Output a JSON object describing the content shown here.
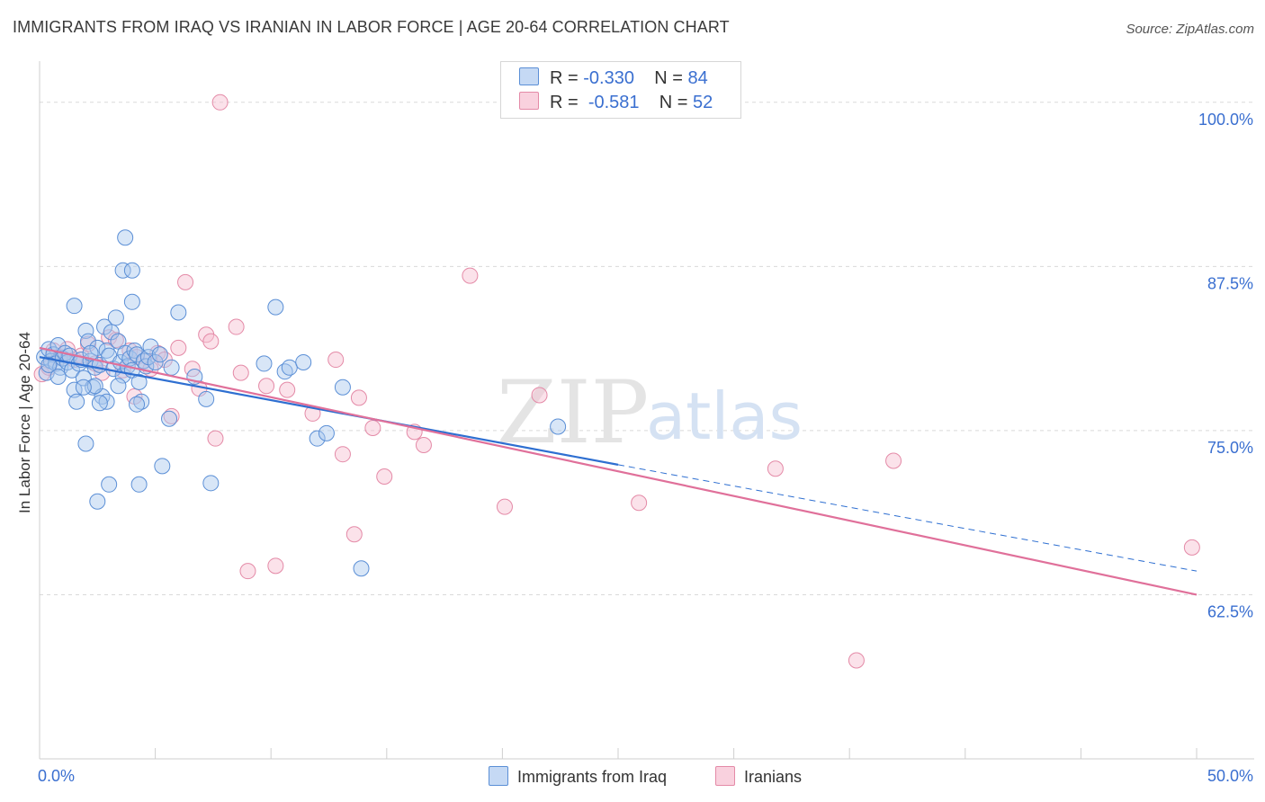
{
  "title": "IMMIGRANTS FROM IRAQ VS IRANIAN IN LABOR FORCE | AGE 20-64 CORRELATION CHART",
  "source": "Source: ZipAtlas.com",
  "watermark": {
    "zip": "ZIP",
    "atlas": "atlas"
  },
  "legend": {
    "series1": {
      "r_label": "R =",
      "r_value": "-0.330",
      "n_label": "N =",
      "n_value": "84"
    },
    "series2": {
      "r_label": "R =",
      "r_value": "-0.581",
      "n_label": "N =",
      "n_value": "52"
    }
  },
  "bottom_legend": {
    "series1": "Immigrants from Iraq",
    "series2": "Iranians"
  },
  "colors": {
    "blue_fill": "#a9c7ee",
    "blue_stroke": "#5b8fd6",
    "blue_line": "#2e6fd1",
    "pink_fill": "#f6bfd0",
    "pink_stroke": "#e48aa7",
    "pink_line": "#e0709a",
    "tick_label": "#3a6fd0",
    "grid": "#d9d9d9"
  },
  "chart_data": {
    "type": "scatter",
    "title": "IMMIGRANTS FROM IRAQ VS IRANIAN IN LABOR FORCE | AGE 20-64 CORRELATION CHART",
    "xlabel": "",
    "ylabel": "In Labor Force | Age 20-64",
    "xlim": [
      0,
      50
    ],
    "ylim": [
      50,
      103
    ],
    "x_tick_labels": [
      "0.0%",
      "50.0%"
    ],
    "y_ticks": [
      62.5,
      75.0,
      87.5,
      100.0
    ],
    "y_tick_labels": [
      "62.5%",
      "75.0%",
      "87.5%",
      "100.0%"
    ],
    "series": [
      {
        "name": "Immigrants from Iraq",
        "points": [
          [
            0.2,
            80.6
          ],
          [
            0.3,
            79.4
          ],
          [
            0.4,
            81.2
          ],
          [
            0.5,
            80.3
          ],
          [
            0.6,
            80.8
          ],
          [
            0.7,
            80.1
          ],
          [
            0.8,
            81.5
          ],
          [
            0.9,
            79.8
          ],
          [
            1.0,
            80.5
          ],
          [
            1.1,
            80.9
          ],
          [
            1.2,
            80.2
          ],
          [
            1.3,
            80.7
          ],
          [
            1.4,
            79.6
          ],
          [
            1.5,
            78.1
          ],
          [
            1.6,
            77.2
          ],
          [
            1.7,
            80.1
          ],
          [
            1.8,
            80.4
          ],
          [
            1.9,
            79.0
          ],
          [
            2.0,
            82.6
          ],
          [
            2.1,
            81.8
          ],
          [
            2.2,
            80.3
          ],
          [
            2.3,
            78.3
          ],
          [
            2.4,
            79.8
          ],
          [
            2.5,
            81.3
          ],
          [
            2.6,
            80.0
          ],
          [
            2.7,
            77.6
          ],
          [
            2.8,
            82.9
          ],
          [
            2.9,
            81.1
          ],
          [
            3.0,
            80.7
          ],
          [
            3.1,
            82.5
          ],
          [
            3.2,
            79.7
          ],
          [
            3.3,
            83.6
          ],
          [
            3.4,
            81.8
          ],
          [
            3.5,
            80.2
          ],
          [
            3.6,
            79.2
          ],
          [
            3.7,
            80.9
          ],
          [
            3.8,
            79.9
          ],
          [
            3.9,
            80.5
          ],
          [
            4.0,
            79.6
          ],
          [
            4.1,
            81.1
          ],
          [
            4.2,
            80.8
          ],
          [
            4.3,
            78.7
          ],
          [
            4.4,
            77.2
          ],
          [
            4.5,
            80.3
          ],
          [
            4.6,
            79.9
          ],
          [
            4.7,
            80.6
          ],
          [
            4.8,
            81.4
          ],
          [
            5.0,
            80.2
          ],
          [
            5.2,
            80.8
          ],
          [
            5.3,
            72.3
          ],
          [
            5.6,
            75.9
          ],
          [
            6.0,
            84.0
          ],
          [
            6.7,
            79.1
          ],
          [
            7.2,
            77.4
          ],
          [
            7.4,
            71.0
          ],
          [
            9.7,
            80.1
          ],
          [
            10.2,
            84.4
          ],
          [
            10.6,
            79.5
          ],
          [
            10.8,
            79.8
          ],
          [
            11.4,
            80.2
          ],
          [
            12.0,
            74.4
          ],
          [
            12.4,
            74.8
          ],
          [
            13.1,
            78.3
          ],
          [
            13.9,
            64.5
          ],
          [
            22.4,
            75.3
          ],
          [
            2.0,
            74.0
          ],
          [
            2.5,
            69.6
          ],
          [
            2.9,
            77.2
          ],
          [
            3.0,
            70.9
          ],
          [
            3.4,
            78.4
          ],
          [
            3.6,
            87.2
          ],
          [
            3.7,
            89.7
          ],
          [
            4.0,
            87.2
          ],
          [
            4.0,
            84.8
          ],
          [
            4.2,
            77.0
          ],
          [
            4.3,
            70.9
          ],
          [
            1.5,
            84.5
          ],
          [
            2.2,
            80.9
          ],
          [
            2.4,
            78.4
          ],
          [
            2.6,
            77.1
          ],
          [
            0.4,
            80.0
          ],
          [
            0.8,
            79.1
          ],
          [
            1.9,
            78.3
          ],
          [
            5.7,
            79.8
          ]
        ]
      },
      {
        "name": "Iranians",
        "points": [
          [
            0.1,
            79.3
          ],
          [
            0.4,
            79.8
          ],
          [
            0.6,
            81.1
          ],
          [
            0.9,
            80.6
          ],
          [
            1.2,
            81.2
          ],
          [
            1.5,
            80.4
          ],
          [
            1.8,
            80.7
          ],
          [
            2.1,
            81.6
          ],
          [
            2.4,
            80.1
          ],
          [
            2.7,
            79.4
          ],
          [
            3.0,
            82.1
          ],
          [
            3.3,
            81.9
          ],
          [
            3.6,
            79.6
          ],
          [
            3.9,
            81.1
          ],
          [
            4.2,
            80.6
          ],
          [
            4.5,
            80.3
          ],
          [
            4.8,
            79.7
          ],
          [
            5.1,
            80.9
          ],
          [
            5.4,
            80.4
          ],
          [
            5.7,
            76.1
          ],
          [
            6.0,
            81.3
          ],
          [
            6.3,
            86.3
          ],
          [
            6.6,
            79.7
          ],
          [
            6.9,
            78.2
          ],
          [
            7.2,
            82.3
          ],
          [
            7.4,
            81.8
          ],
          [
            7.6,
            74.4
          ],
          [
            7.8,
            100.0
          ],
          [
            8.5,
            82.9
          ],
          [
            8.7,
            79.4
          ],
          [
            9.0,
            64.3
          ],
          [
            9.8,
            78.4
          ],
          [
            10.2,
            64.7
          ],
          [
            10.7,
            78.1
          ],
          [
            11.8,
            76.3
          ],
          [
            12.8,
            80.4
          ],
          [
            13.1,
            73.2
          ],
          [
            13.6,
            67.1
          ],
          [
            13.8,
            77.5
          ],
          [
            14.4,
            75.2
          ],
          [
            14.9,
            71.5
          ],
          [
            16.2,
            74.9
          ],
          [
            16.6,
            73.9
          ],
          [
            18.6,
            86.8
          ],
          [
            20.1,
            69.2
          ],
          [
            21.6,
            77.7
          ],
          [
            25.9,
            69.5
          ],
          [
            31.8,
            72.1
          ],
          [
            35.3,
            57.5
          ],
          [
            36.9,
            72.7
          ],
          [
            49.8,
            66.1
          ],
          [
            4.1,
            77.6
          ]
        ]
      }
    ],
    "trend_lines": [
      {
        "series": "Immigrants from Iraq",
        "x": [
          0,
          25
        ],
        "y": [
          80.6,
          72.4
        ],
        "style": "solid"
      },
      {
        "series": "Immigrants from Iraq",
        "x": [
          25,
          50
        ],
        "y": [
          72.4,
          64.3
        ],
        "style": "dashed"
      },
      {
        "series": "Iranians",
        "x": [
          0,
          50
        ],
        "y": [
          81.3,
          62.5
        ],
        "style": "solid"
      }
    ]
  }
}
